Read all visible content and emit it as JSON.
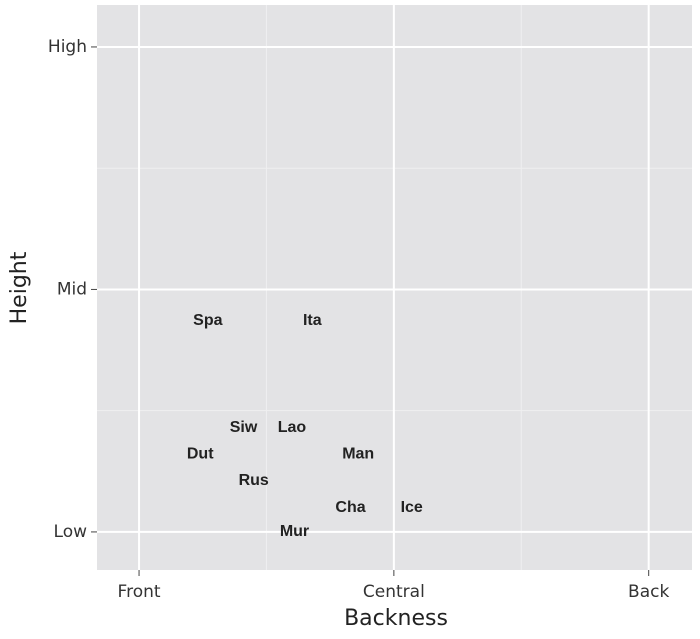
{
  "chart_data": {
    "type": "scatter",
    "x_label": "Backness",
    "y_label": "Height",
    "labels": [
      "Spa",
      "Ita",
      "Siw",
      "Lao",
      "Dut",
      "Man",
      "Rus",
      "Cha",
      "Ice",
      "Mur"
    ],
    "x": [
      1.27,
      1.68,
      1.41,
      1.6,
      1.24,
      1.86,
      1.45,
      1.83,
      2.07,
      1.61
    ],
    "values": [
      1.87,
      1.87,
      1.43,
      1.43,
      1.32,
      1.32,
      1.21,
      1.1,
      1.1,
      1.0
    ],
    "color": "#222222",
    "xlim": [
      0.835,
      3.17
    ],
    "ylim": [
      0.843,
      3.173
    ],
    "xticks": [
      {
        "value": 1,
        "label": "Front"
      },
      {
        "value": 2,
        "label": "Central"
      },
      {
        "value": 3,
        "label": "Back"
      }
    ],
    "yticks": [
      {
        "value": 1,
        "label": "Low"
      },
      {
        "value": 2,
        "label": "Mid"
      },
      {
        "value": 3,
        "label": "High"
      }
    ],
    "grid": true
  }
}
